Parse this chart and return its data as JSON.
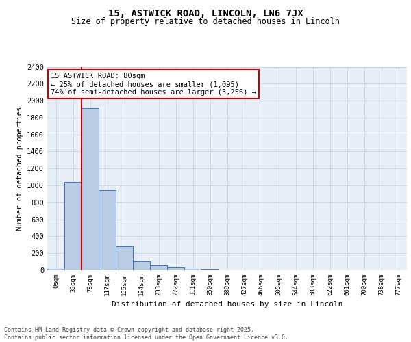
{
  "title": "15, ASTWICK ROAD, LINCOLN, LN6 7JX",
  "subtitle": "Size of property relative to detached houses in Lincoln",
  "xlabel": "Distribution of detached houses by size in Lincoln",
  "ylabel": "Number of detached properties",
  "bar_labels": [
    "0sqm",
    "39sqm",
    "78sqm",
    "117sqm",
    "155sqm",
    "194sqm",
    "233sqm",
    "272sqm",
    "311sqm",
    "350sqm",
    "389sqm",
    "427sqm",
    "466sqm",
    "505sqm",
    "544sqm",
    "583sqm",
    "622sqm",
    "661sqm",
    "700sqm",
    "738sqm",
    "777sqm"
  ],
  "bar_values": [
    20,
    1040,
    1910,
    940,
    280,
    105,
    55,
    30,
    15,
    5,
    2,
    0,
    0,
    0,
    0,
    0,
    0,
    0,
    0,
    0,
    0
  ],
  "bar_color": "#b8cce4",
  "bar_edge_color": "#4472c4",
  "grid_color": "#c8d4e8",
  "background_color": "#e8eef6",
  "vline_color": "#cc0000",
  "annotation_box_text": "15 ASTWICK ROAD: 80sqm\n← 25% of detached houses are smaller (1,095)\n74% of semi-detached houses are larger (3,256) →",
  "annotation_box_color": "#cc0000",
  "ylim": [
    0,
    2400
  ],
  "yticks": [
    0,
    200,
    400,
    600,
    800,
    1000,
    1200,
    1400,
    1600,
    1800,
    2000,
    2200,
    2400
  ],
  "footer": "Contains HM Land Registry data © Crown copyright and database right 2025.\nContains public sector information licensed under the Open Government Licence v3.0."
}
